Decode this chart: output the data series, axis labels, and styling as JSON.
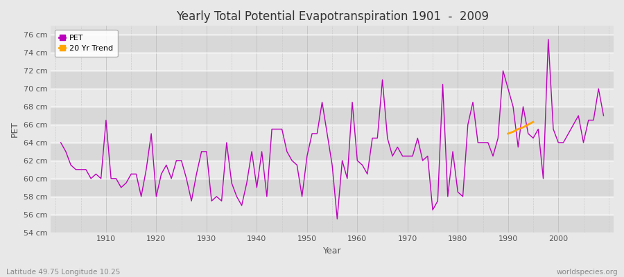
{
  "title": "Yearly Total Potential Evapotranspiration 1901  -  2009",
  "xlabel": "Year",
  "ylabel": "PET",
  "footer_left": "Latitude 49.75 Longitude 10.25",
  "footer_right": "worldspecies.org",
  "ylim": [
    54,
    77
  ],
  "ytick_labels": [
    "54 cm",
    "56 cm",
    "58 cm",
    "60 cm",
    "62 cm",
    "64 cm",
    "66 cm",
    "68 cm",
    "70 cm",
    "72 cm",
    "74 cm",
    "76 cm"
  ],
  "ytick_values": [
    54,
    56,
    58,
    60,
    62,
    64,
    66,
    68,
    70,
    72,
    74,
    76
  ],
  "background_color": "#e8e8e8",
  "plot_bg_color": "#e0e0e0",
  "grid_color": "#ffffff",
  "pet_color": "#bb00bb",
  "trend_color": "#ffa500",
  "legend_pet": "PET",
  "legend_trend": "20 Yr Trend",
  "xlim": [
    1899,
    2011
  ],
  "xticks": [
    1910,
    1920,
    1930,
    1940,
    1950,
    1960,
    1970,
    1980,
    1990,
    2000
  ],
  "pet_years": [
    1901,
    1902,
    1903,
    1904,
    1905,
    1906,
    1907,
    1908,
    1909,
    1910,
    1911,
    1912,
    1913,
    1914,
    1915,
    1916,
    1917,
    1918,
    1919,
    1920,
    1921,
    1922,
    1923,
    1924,
    1925,
    1926,
    1927,
    1928,
    1929,
    1930,
    1931,
    1932,
    1933,
    1934,
    1935,
    1936,
    1937,
    1938,
    1939,
    1940,
    1941,
    1942,
    1943,
    1944,
    1945,
    1946,
    1947,
    1948,
    1949,
    1950,
    1951,
    1952,
    1953,
    1954,
    1955,
    1956,
    1957,
    1958,
    1959,
    1960,
    1961,
    1962,
    1963,
    1964,
    1965,
    1966,
    1967,
    1968,
    1969,
    1970,
    1971,
    1972,
    1973,
    1974,
    1975,
    1976,
    1977,
    1978,
    1979,
    1980,
    1981,
    1982,
    1983,
    1984,
    1985,
    1986,
    1987,
    1988,
    1989,
    1990,
    1991,
    1992,
    1993,
    1994,
    1995,
    1996,
    1997,
    1998,
    1999,
    2000,
    2001,
    2002,
    2003,
    2004,
    2005,
    2006,
    2007,
    2008,
    2009
  ],
  "pet_values": [
    64.0,
    63.0,
    61.5,
    61.0,
    61.0,
    61.0,
    60.0,
    60.5,
    60.0,
    66.5,
    60.0,
    60.0,
    59.0,
    59.5,
    60.5,
    60.5,
    58.0,
    61.0,
    65.0,
    58.0,
    60.5,
    61.5,
    60.0,
    62.0,
    62.0,
    60.0,
    57.5,
    60.5,
    63.0,
    63.0,
    57.5,
    58.0,
    57.5,
    64.0,
    59.5,
    58.0,
    57.0,
    59.5,
    63.0,
    59.0,
    63.0,
    58.0,
    65.5,
    65.5,
    65.5,
    63.0,
    62.0,
    61.5,
    58.0,
    62.5,
    65.0,
    65.0,
    68.5,
    65.0,
    61.5,
    55.5,
    62.0,
    60.0,
    68.5,
    62.0,
    61.5,
    60.5,
    64.5,
    64.5,
    71.0,
    64.5,
    62.5,
    63.5,
    62.5,
    62.5,
    62.5,
    64.5,
    62.0,
    62.5,
    56.5,
    57.5,
    70.5,
    58.0,
    63.0,
    58.5,
    58.0,
    66.0,
    68.5,
    64.0,
    64.0,
    64.0,
    62.5,
    64.5,
    72.0,
    70.0,
    68.0,
    63.5,
    68.0,
    65.0,
    64.5,
    65.5,
    60.0,
    75.5,
    65.5,
    64.0,
    64.0,
    65.0,
    66.0,
    67.0,
    64.0,
    66.5,
    66.5,
    70.0,
    67.0
  ],
  "trend_years": [
    1990,
    1991,
    1992,
    1993,
    1994,
    1995
  ],
  "trend_values": [
    65.0,
    65.2,
    65.5,
    65.7,
    66.0,
    66.3
  ]
}
